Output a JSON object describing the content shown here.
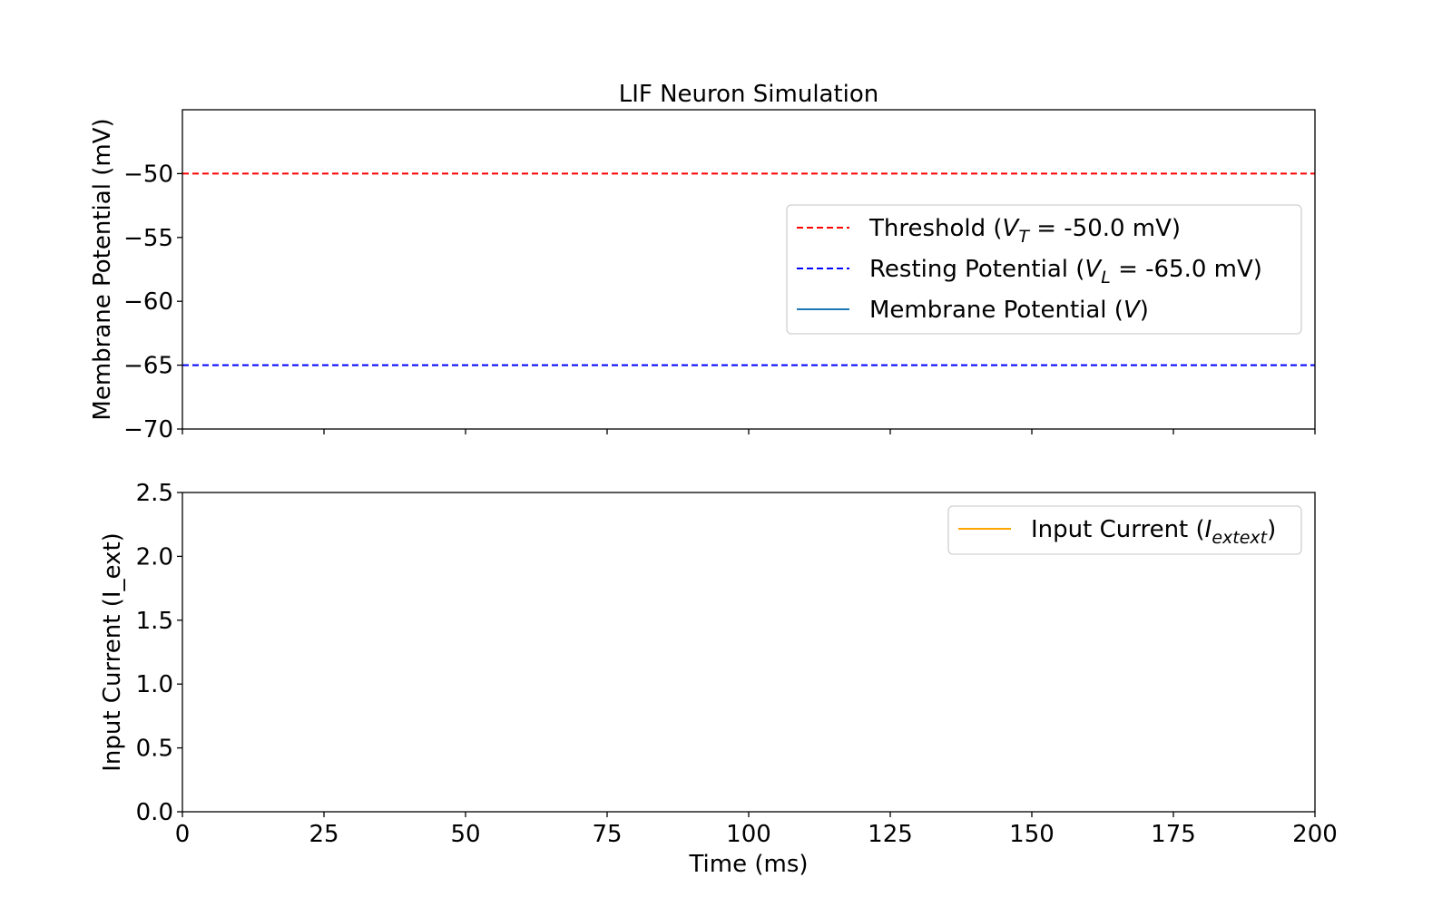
{
  "chart_data": [
    {
      "type": "line",
      "title": "LIF Neuron Simulation",
      "xlabel": "",
      "ylabel": "Membrane Potential (mV)",
      "xlim": [
        0,
        200
      ],
      "ylim": [
        -70,
        -45
      ],
      "x_ticks": [
        0,
        25,
        50,
        75,
        100,
        125,
        150,
        175,
        200
      ],
      "x_ticks_labeled": false,
      "y_ticks": [
        -70,
        -65,
        -60,
        -55,
        -50
      ],
      "y_tick_labels": [
        "−70",
        "−65",
        "−60",
        "−55",
        "−50"
      ],
      "grid": false,
      "legend_position": "center-right",
      "series": [
        {
          "name_parts": [
            "Threshold (",
            "V",
            "T",
            " = -50.0 mV)"
          ],
          "kind": "hline",
          "y": -50.0,
          "color": "#ff0000",
          "style": "dashed"
        },
        {
          "name_parts": [
            "Resting Potential (",
            "V",
            "L",
            " = -65.0 mV)"
          ],
          "kind": "hline",
          "y": -65.0,
          "color": "#0000ff",
          "style": "dashed"
        },
        {
          "name_parts": [
            "Membrane Potential (",
            "V",
            "",
            ")"
          ],
          "kind": "line",
          "x": [],
          "y": [],
          "color": "#1f77b4",
          "style": "solid"
        }
      ]
    },
    {
      "type": "line",
      "title": "",
      "xlabel": "Time (ms)",
      "ylabel": "Input Current (I_ext)",
      "xlim": [
        0,
        200
      ],
      "ylim": [
        0.0,
        2.5
      ],
      "x_ticks": [
        0,
        25,
        50,
        75,
        100,
        125,
        150,
        175,
        200
      ],
      "x_tick_labels": [
        "0",
        "25",
        "50",
        "75",
        "100",
        "125",
        "150",
        "175",
        "200"
      ],
      "y_ticks": [
        0.0,
        0.5,
        1.0,
        1.5,
        2.0,
        2.5
      ],
      "y_tick_labels": [
        "0.0",
        "0.5",
        "1.0",
        "1.5",
        "2.0",
        "2.5"
      ],
      "grid": false,
      "legend_position": "upper-right",
      "series": [
        {
          "name_parts": [
            "Input Current (",
            "I",
            "extext",
            ")"
          ],
          "kind": "line",
          "x": [],
          "y": [],
          "color": "#ffa500",
          "style": "solid"
        }
      ]
    }
  ]
}
